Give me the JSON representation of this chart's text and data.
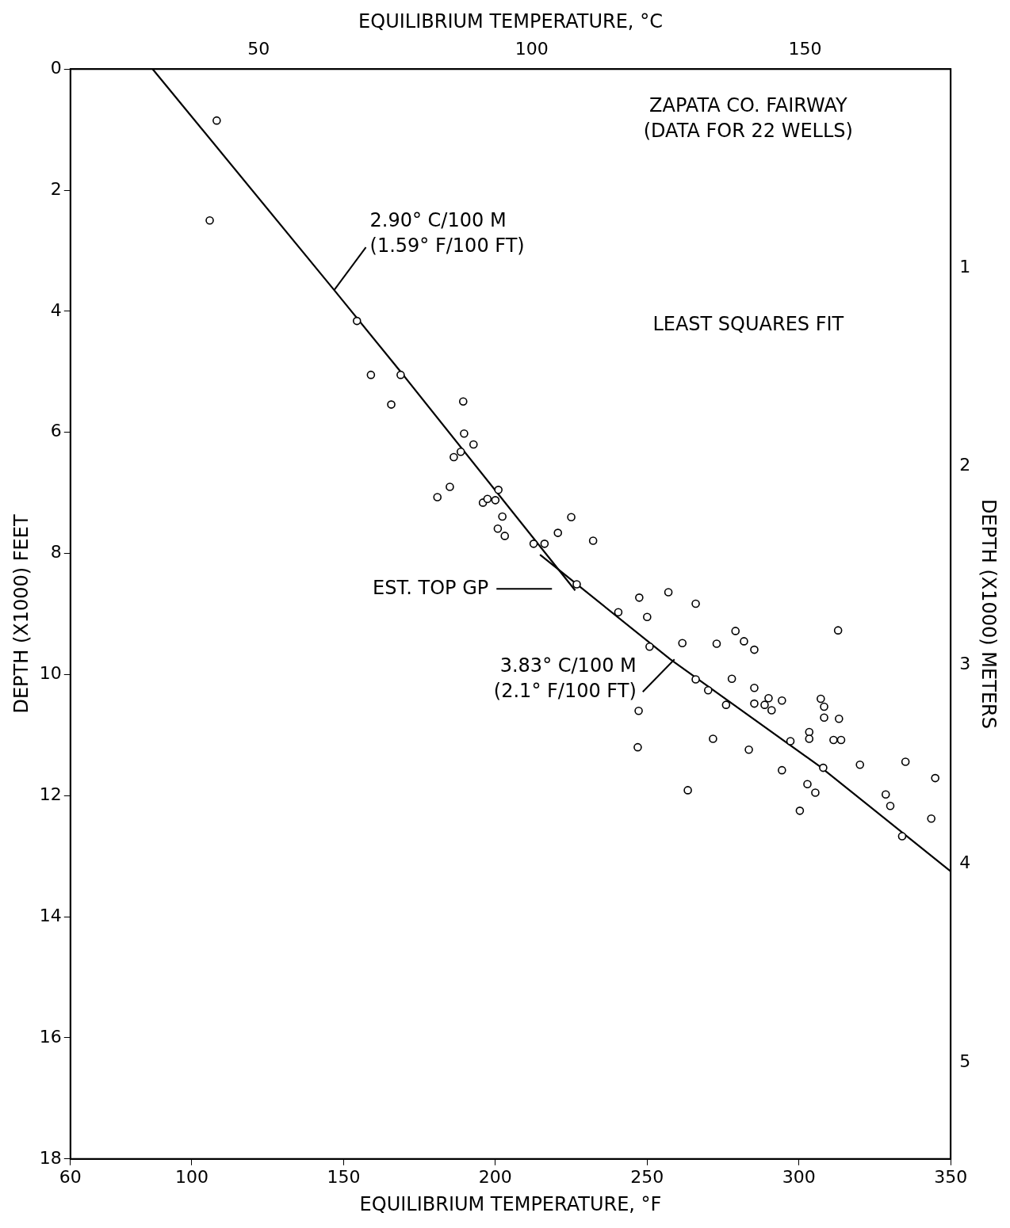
{
  "chart_data": {
    "type": "scatter",
    "title": "ZAPATA CO. FAIRWAY\n(DATA FOR 22 WELLS)",
    "xlabel": "EQUILIBRIUM TEMPERATURE, °F",
    "x2label": "EQUILIBRIUM TEMPERATURE, °C",
    "ylabel": "DEPTH (X1000) FEET",
    "y2label": "DEPTH (X1000) METERS",
    "xlim": [
      60,
      350
    ],
    "xticks": [
      60,
      100,
      150,
      200,
      250,
      300,
      350
    ],
    "x2lim": [
      15.56,
      176.67
    ],
    "x2ticks": [
      50,
      100,
      150
    ],
    "ylim": [
      18,
      0
    ],
    "yticks": [
      0,
      2,
      4,
      6,
      8,
      10,
      12,
      14,
      16,
      18
    ],
    "y2lim": [
      5.486,
      0
    ],
    "y2ticks": [
      1,
      2,
      3,
      4,
      5
    ],
    "grid": false,
    "legend": false,
    "series": [
      {
        "color": "#000000",
        "marker": "circle",
        "x": [
          108.2,
          105.9,
          154.4,
          159.0,
          168.8,
          165.7,
          189.4,
          189.7,
          192.8,
          186.3,
          188.6,
          180.9,
          185.0,
          201.0,
          200.0,
          195.9,
          197.4,
          202.3,
          200.8,
          203.1,
          212.6,
          216.2,
          220.6,
          225.0,
          232.2,
          226.8,
          240.5,
          247.4,
          257.0,
          266.0,
          250.0,
          250.8,
          261.6,
          279.1,
          281.9,
          285.3,
          312.9,
          272.9,
          266.0,
          270.1,
          277.9,
          285.3,
          276.0,
          285.3,
          288.7,
          290.0,
          291.0,
          294.4,
          307.2,
          308.3,
          308.3,
          313.2,
          247.2,
          246.9,
          271.7,
          297.2,
          303.4,
          303.4,
          311.4,
          313.9,
          283.5,
          308.0,
          294.4,
          320.1,
          335.1,
          344.9,
          263.4,
          302.8,
          305.4,
          300.3,
          328.6,
          330.1,
          343.6,
          334.0
        ],
        "values": [
          0.85,
          2.5,
          4.16,
          5.05,
          5.05,
          5.54,
          5.49,
          6.02,
          6.2,
          6.41,
          6.32,
          7.07,
          6.9,
          6.95,
          7.12,
          7.16,
          7.1,
          7.39,
          7.59,
          7.71,
          7.84,
          7.84,
          7.66,
          7.4,
          7.79,
          8.51,
          8.97,
          8.73,
          8.64,
          8.83,
          9.05,
          9.54,
          9.48,
          9.28,
          9.45,
          9.59,
          9.27,
          9.49,
          10.08,
          10.26,
          10.07,
          10.22,
          10.5,
          10.48,
          10.5,
          10.39,
          10.59,
          10.43,
          10.4,
          10.53,
          10.71,
          10.73,
          10.6,
          11.2,
          11.06,
          11.1,
          10.95,
          11.06,
          11.08,
          11.08,
          11.24,
          11.54,
          11.58,
          11.49,
          11.44,
          11.71,
          11.91,
          11.81,
          11.95,
          12.25,
          11.98,
          12.17,
          12.38,
          12.67
        ]
      },
      {
        "type": "line",
        "color": "#000000",
        "x": [
          87.1,
          146.9,
          168.8,
          226.3
        ],
        "values": [
          0,
          3.65,
          5.0,
          8.61
        ]
      },
      {
        "type": "line",
        "color": "#000000",
        "x": [
          214.7,
          257.7,
          306.7,
          350
        ],
        "values": [
          8.02,
          9.75,
          11.51,
          13.25
        ]
      }
    ],
    "annotations": [
      {
        "text": "2.90° C/100 M\n(1.59° F/100 FT)",
        "x": 146.9,
        "y": 3.65
      },
      "LEAST SQUARES FIT",
      "EST. TOP GP",
      {
        "text": "3.83° C/100 M\n(2.1° F/100 FT)",
        "x": 259,
        "y": 9.75
      }
    ]
  }
}
